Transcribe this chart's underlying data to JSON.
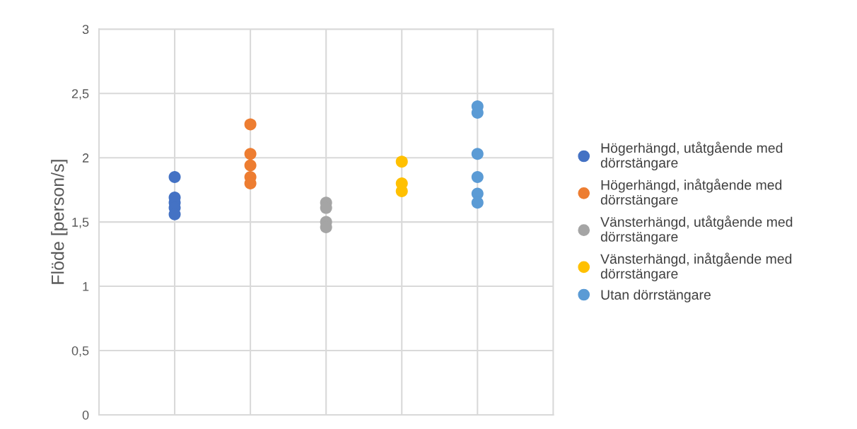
{
  "chart_data": {
    "type": "scatter",
    "ylabel": "Flöde [person/s]",
    "categories": [
      null,
      null,
      null,
      null,
      null
    ],
    "ylim": [
      0,
      3
    ],
    "yticks": [
      0,
      {
        "value": 0.5,
        "label": "0,5"
      },
      1,
      {
        "value": 1.5,
        "label": "1,5"
      },
      2,
      {
        "value": 2.5,
        "label": "2,5"
      },
      3
    ],
    "grid": true,
    "legend": "right",
    "marker": "circle",
    "series": [
      {
        "name": "Högerhängd, utåtgående med dörrstängare",
        "color": "#4472c4",
        "values": [
          1.85,
          null,
          null,
          null,
          null
        ]
      },
      {
        "color": "#4472c4",
        "values": [
          1.69,
          null,
          null,
          null,
          null
        ]
      },
      {
        "color": "#4472c4",
        "values": [
          1.65,
          null,
          null,
          null,
          null
        ]
      },
      {
        "color": "#4472c4",
        "values": [
          1.61,
          null,
          null,
          null,
          null
        ]
      },
      {
        "color": "#4472c4",
        "values": [
          1.56,
          null,
          null,
          null,
          null
        ]
      },
      {
        "name": "Högerhängd, inåtgående med dörrstängare",
        "color": "#ed7d31",
        "values": [
          null,
          2.26,
          null,
          null,
          null
        ]
      },
      {
        "color": "#ed7d31",
        "values": [
          null,
          2.03,
          null,
          null,
          null
        ]
      },
      {
        "color": "#ed7d31",
        "values": [
          null,
          1.94,
          null,
          null,
          null
        ]
      },
      {
        "color": "#ed7d31",
        "values": [
          null,
          1.85,
          null,
          null,
          null
        ]
      },
      {
        "color": "#ed7d31",
        "values": [
          null,
          1.8,
          null,
          null,
          null
        ]
      },
      {
        "name": "Vänsterhängd, utåtgående med dörrstängare",
        "color": "#a5a5a5",
        "values": [
          null,
          null,
          1.65,
          null,
          null
        ]
      },
      {
        "color": "#a5a5a5",
        "values": [
          null,
          null,
          1.61,
          null,
          null
        ]
      },
      {
        "color": "#a5a5a5",
        "values": [
          null,
          null,
          1.5,
          null,
          null
        ]
      },
      {
        "color": "#a5a5a5",
        "values": [
          null,
          null,
          1.46,
          null,
          null
        ]
      },
      {
        "name": "Vänsterhängd, inåtgående med dörrstängare",
        "color": "#ffc000",
        "values": [
          null,
          null,
          null,
          1.97,
          null
        ]
      },
      {
        "color": "#ffc000",
        "values": [
          null,
          null,
          null,
          1.8,
          null
        ]
      },
      {
        "color": "#ffc000",
        "values": [
          null,
          null,
          null,
          1.74,
          null
        ]
      },
      {
        "name": "Utan dörrstängare",
        "color": "#5b9bd5",
        "values": [
          null,
          null,
          null,
          null,
          2.4
        ]
      },
      {
        "color": "#5b9bd5",
        "values": [
          null,
          null,
          null,
          null,
          2.35
        ]
      },
      {
        "color": "#5b9bd5",
        "values": [
          null,
          null,
          null,
          null,
          2.03
        ]
      },
      {
        "color": "#5b9bd5",
        "values": [
          null,
          null,
          null,
          null,
          1.85
        ]
      },
      {
        "color": "#5b9bd5",
        "values": [
          null,
          null,
          null,
          null,
          1.72
        ]
      },
      {
        "color": "#5b9bd5",
        "values": [
          null,
          null,
          null,
          null,
          1.65
        ]
      }
    ]
  }
}
